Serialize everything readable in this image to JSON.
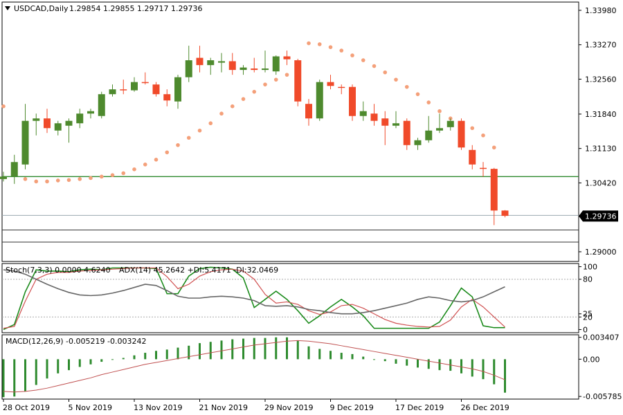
{
  "header": {
    "symbol": "USDCAD,Daily",
    "ohlc": "1.29854 1.29855 1.29717 1.29736"
  },
  "colors": {
    "bull": "#4e8a2e",
    "bear": "#f04a2a",
    "sar": "#f4a07a",
    "level": "#2f8a2f",
    "stoch_main": "#1a8a1a",
    "stoch_signal": "#d05050",
    "adx": "#666666",
    "macd_hist": "#2e8b2e",
    "macd_signal": "#c05050"
  },
  "chart_data": [
    {
      "type": "candlestick",
      "title": "USDCAD,Daily",
      "price_axis_labels": [
        "1.33980",
        "1.33270",
        "1.32560",
        "1.31840",
        "1.31130",
        "1.30420",
        "1.29736",
        "1.29000"
      ],
      "last_price_label": "1.29736",
      "x_tick_labels": [
        "28 Oct 2019",
        "5 Nov 2019",
        "13 Nov 2019",
        "21 Nov 2019",
        "29 Nov 2019",
        "9 Dec 2019",
        "17 Dec 2019",
        "26 Dec 2019"
      ],
      "ylim": [
        1.288,
        1.3415
      ],
      "horizontal_levels": [
        1.3055,
        1.2975,
        1.2945,
        1.292
      ],
      "candles": [
        {
          "o": 1.305,
          "h": 1.3065,
          "l": 1.3045,
          "c": 1.3055
        },
        {
          "o": 1.3055,
          "h": 1.31,
          "l": 1.304,
          "c": 1.3085
        },
        {
          "o": 1.308,
          "h": 1.3205,
          "l": 1.307,
          "c": 1.317
        },
        {
          "o": 1.317,
          "h": 1.3185,
          "l": 1.314,
          "c": 1.3175
        },
        {
          "o": 1.3175,
          "h": 1.3195,
          "l": 1.3145,
          "c": 1.3155
        },
        {
          "o": 1.315,
          "h": 1.317,
          "l": 1.314,
          "c": 1.3165
        },
        {
          "o": 1.316,
          "h": 1.3175,
          "l": 1.3125,
          "c": 1.317
        },
        {
          "o": 1.3165,
          "h": 1.3195,
          "l": 1.3155,
          "c": 1.3185
        },
        {
          "o": 1.3185,
          "h": 1.3195,
          "l": 1.3175,
          "c": 1.319
        },
        {
          "o": 1.318,
          "h": 1.323,
          "l": 1.3175,
          "c": 1.3225
        },
        {
          "o": 1.3225,
          "h": 1.3245,
          "l": 1.322,
          "c": 1.3235
        },
        {
          "o": 1.3235,
          "h": 1.3255,
          "l": 1.3225,
          "c": 1.3233
        },
        {
          "o": 1.3233,
          "h": 1.326,
          "l": 1.323,
          "c": 1.325
        },
        {
          "o": 1.325,
          "h": 1.327,
          "l": 1.3245,
          "c": 1.3248
        },
        {
          "o": 1.3245,
          "h": 1.325,
          "l": 1.322,
          "c": 1.3225
        },
        {
          "o": 1.3225,
          "h": 1.3235,
          "l": 1.32,
          "c": 1.3212
        },
        {
          "o": 1.321,
          "h": 1.3265,
          "l": 1.3195,
          "c": 1.326
        },
        {
          "o": 1.326,
          "h": 1.3325,
          "l": 1.325,
          "c": 1.3295
        },
        {
          "o": 1.33,
          "h": 1.3325,
          "l": 1.327,
          "c": 1.3285
        },
        {
          "o": 1.3285,
          "h": 1.33,
          "l": 1.3265,
          "c": 1.3295
        },
        {
          "o": 1.329,
          "h": 1.331,
          "l": 1.327,
          "c": 1.3293
        },
        {
          "o": 1.3293,
          "h": 1.331,
          "l": 1.3265,
          "c": 1.3275
        },
        {
          "o": 1.3275,
          "h": 1.3285,
          "l": 1.3265,
          "c": 1.328
        },
        {
          "o": 1.3278,
          "h": 1.33,
          "l": 1.327,
          "c": 1.3275
        },
        {
          "o": 1.3275,
          "h": 1.3315,
          "l": 1.327,
          "c": 1.3278
        },
        {
          "o": 1.3272,
          "h": 1.3305,
          "l": 1.3265,
          "c": 1.3303
        },
        {
          "o": 1.3303,
          "h": 1.3315,
          "l": 1.3285,
          "c": 1.3297
        },
        {
          "o": 1.3295,
          "h": 1.3298,
          "l": 1.32,
          "c": 1.321
        },
        {
          "o": 1.3205,
          "h": 1.3215,
          "l": 1.316,
          "c": 1.3175
        },
        {
          "o": 1.3175,
          "h": 1.3255,
          "l": 1.317,
          "c": 1.325
        },
        {
          "o": 1.325,
          "h": 1.3265,
          "l": 1.3235,
          "c": 1.3242
        },
        {
          "o": 1.324,
          "h": 1.3245,
          "l": 1.3225,
          "c": 1.3238
        },
        {
          "o": 1.324,
          "h": 1.3245,
          "l": 1.317,
          "c": 1.318
        },
        {
          "o": 1.318,
          "h": 1.321,
          "l": 1.317,
          "c": 1.319
        },
        {
          "o": 1.3185,
          "h": 1.3205,
          "l": 1.316,
          "c": 1.317
        },
        {
          "o": 1.3175,
          "h": 1.319,
          "l": 1.312,
          "c": 1.316
        },
        {
          "o": 1.316,
          "h": 1.319,
          "l": 1.3155,
          "c": 1.3165
        },
        {
          "o": 1.317,
          "h": 1.3175,
          "l": 1.311,
          "c": 1.312
        },
        {
          "o": 1.312,
          "h": 1.3135,
          "l": 1.311,
          "c": 1.313
        },
        {
          "o": 1.313,
          "h": 1.318,
          "l": 1.3125,
          "c": 1.315
        },
        {
          "o": 1.315,
          "h": 1.3185,
          "l": 1.3145,
          "c": 1.3155
        },
        {
          "o": 1.3157,
          "h": 1.3175,
          "l": 1.315,
          "c": 1.317
        },
        {
          "o": 1.317,
          "h": 1.3175,
          "l": 1.311,
          "c": 1.3115
        },
        {
          "o": 1.311,
          "h": 1.312,
          "l": 1.307,
          "c": 1.308
        },
        {
          "o": 1.3073,
          "h": 1.3085,
          "l": 1.3055,
          "c": 1.3071
        },
        {
          "o": 1.3071,
          "h": 1.3073,
          "l": 1.2955,
          "c": 1.2985
        },
        {
          "o": 1.2985,
          "h": 1.2986,
          "l": 1.2971,
          "c": 1.2974
        }
      ],
      "parabolic_sar": [
        1.32,
        null,
        1.305,
        1.3045,
        1.3045,
        1.3047,
        1.3048,
        1.305,
        1.3052,
        1.3055,
        1.3058,
        1.3062,
        1.307,
        1.308,
        1.309,
        1.3105,
        1.312,
        1.3135,
        1.315,
        1.3165,
        1.3185,
        1.32,
        1.3215,
        1.323,
        1.3245,
        1.3255,
        1.3265,
        1.3275,
        1.333,
        1.3328,
        1.3322,
        1.3315,
        1.3305,
        1.3295,
        1.3283,
        1.327,
        1.3255,
        1.324,
        1.3225,
        1.3208,
        1.319,
        1.3175,
        1.3165,
        1.3155,
        1.314,
        1.3115,
        null
      ]
    },
    {
      "type": "line",
      "title": "Stoch(7,3,3) 0.0000 4.6240  ADX(14) 45.2642 +DI:5.4171 -DI:32.0469",
      "label": "Stoch(7,3,3) 0.0000 4.6240",
      "adx_label": "ADX(14) 45.2642 +DI:5.4171 -DI:32.0469",
      "axis_labels": [
        "100",
        "80",
        "25",
        "20",
        "0"
      ],
      "ylim": [
        -5,
        105
      ],
      "levels": [
        80,
        20
      ],
      "series": [
        {
          "name": "Stoch(7,3,3)",
          "values": [
            0,
            8,
            60,
            95,
            93,
            93,
            92,
            95,
            96,
            95,
            98,
            98,
            98,
            98,
            97,
            57,
            57,
            85,
            97,
            99,
            98,
            96,
            82,
            35,
            48,
            61,
            48,
            30,
            10,
            22,
            36,
            48,
            36,
            22,
            2,
            2,
            2,
            2,
            2,
            2,
            12,
            38,
            66,
            52,
            6,
            3,
            3
          ]
        },
        {
          "name": "Signal",
          "values": [
            2,
            5,
            45,
            80,
            88,
            91,
            91,
            93,
            94,
            95,
            96,
            97,
            98,
            98,
            98,
            84,
            65,
            72,
            85,
            92,
            95,
            96,
            93,
            80,
            56,
            42,
            44,
            40,
            30,
            24,
            28,
            38,
            40,
            34,
            25,
            16,
            10,
            7,
            5,
            4,
            5,
            15,
            36,
            48,
            36,
            20,
            4
          ]
        },
        {
          "name": "ADX(14)",
          "values": [
            95,
            93,
            88,
            80,
            72,
            65,
            59,
            55,
            54,
            55,
            58,
            62,
            67,
            72,
            70,
            62,
            53,
            50,
            50,
            52,
            53,
            52,
            50,
            46,
            38,
            37,
            38,
            36,
            32,
            30,
            27,
            25,
            25,
            27,
            30,
            34,
            38,
            42,
            48,
            52,
            50,
            46,
            44,
            46,
            52,
            60,
            68
          ]
        }
      ]
    },
    {
      "type": "bar",
      "title": "MACD(12,26,9) -0.005219 -0.003242",
      "label": "MACD(12,26,9) -0.005219 -0.003242",
      "axis_labels": [
        "0.003407",
        "0.00",
        "-0.005785"
      ],
      "ylim": [
        -0.0062,
        0.0038
      ],
      "series": [
        {
          "name": "MACD(12,26,9)",
          "values": [
            -0.0059,
            -0.0058,
            -0.005,
            -0.004,
            -0.003,
            -0.0022,
            -0.0017,
            -0.0012,
            -0.0008,
            -0.0004,
            -0.0001,
            0.0002,
            0.0006,
            0.001,
            0.0013,
            0.0015,
            0.0018,
            0.0021,
            0.0025,
            0.0027,
            0.0029,
            0.0031,
            0.0032,
            0.0033,
            0.0033,
            0.0034,
            0.0034,
            0.0029,
            0.002,
            0.0016,
            0.0013,
            0.001,
            0.0008,
            0.0004,
            0.0,
            -0.0003,
            -0.0007,
            -0.001,
            -0.0013,
            -0.0015,
            -0.0017,
            -0.0018,
            -0.0022,
            -0.0027,
            -0.0031,
            -0.0039,
            -0.0052
          ]
        },
        {
          "name": "Signal",
          "values": [
            -0.005,
            -0.0051,
            -0.005,
            -0.0048,
            -0.0045,
            -0.0041,
            -0.0037,
            -0.0033,
            -0.0029,
            -0.0024,
            -0.002,
            -0.0016,
            -0.0012,
            -0.0008,
            -0.0005,
            -0.0002,
            0.0001,
            0.0004,
            0.0007,
            0.001,
            0.0013,
            0.0016,
            0.0019,
            0.0022,
            0.0024,
            0.0026,
            0.0028,
            0.0029,
            0.0028,
            0.0026,
            0.0024,
            0.0021,
            0.0018,
            0.0015,
            0.0012,
            0.0009,
            0.0006,
            0.0003,
            0.0,
            -0.0003,
            -0.0006,
            -0.0009,
            -0.0012,
            -0.0015,
            -0.0019,
            -0.0025,
            -0.0032
          ]
        }
      ]
    }
  ]
}
